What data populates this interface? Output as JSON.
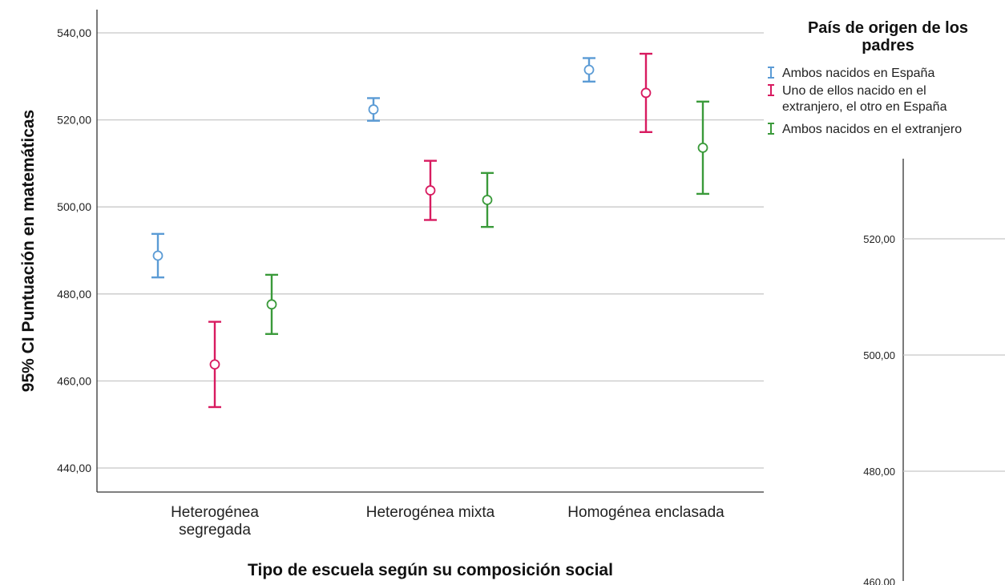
{
  "chart_data": {
    "type": "errorbar",
    "ylabel": "95% CI Puntuación en matemáticas",
    "xlabel": "Tipo de escuela según su composición social",
    "categories": [
      [
        "Heterogénea",
        "segregada"
      ],
      [
        "Heterogénea mixta"
      ],
      [
        "Homogénea enclasada"
      ]
    ],
    "ylim": [
      435,
      545
    ],
    "yticks": [
      440,
      460,
      480,
      500,
      520,
      540
    ],
    "ytick_labels": [
      "440,00",
      "460,00",
      "480,00",
      "500,00",
      "520,00",
      "540,00"
    ],
    "grid": true,
    "legend": {
      "title": [
        "País de origen de los",
        "padres"
      ],
      "placement": "top-right",
      "entries": [
        [
          "Ambos nacidos en España"
        ],
        [
          "Uno de ellos nacido en el",
          "extranjero, el otro en España"
        ],
        [
          "Ambos nacidos en el extranjero"
        ]
      ]
    },
    "series": [
      {
        "name": "Ambos nacidos en España",
        "color": "#5b9bd5",
        "mean": [
          488.8,
          522.4,
          531.5
        ],
        "lower": [
          483.8,
          519.8,
          528.8
        ],
        "upper": [
          493.8,
          525.0,
          534.2
        ]
      },
      {
        "name": "Uno de ellos nacido en el extranjero, el otro en España",
        "color": "#d81b60",
        "mean": [
          463.8,
          503.8,
          526.2
        ],
        "lower": [
          454.0,
          497.0,
          517.2
        ],
        "upper": [
          473.6,
          510.6,
          535.2
        ]
      },
      {
        "name": "Ambos nacidos en el extranjero",
        "color": "#3a9a3a",
        "mean": [
          477.6,
          501.6,
          513.6
        ],
        "lower": [
          470.8,
          495.4,
          503.0
        ],
        "upper": [
          484.4,
          507.8,
          524.2
        ]
      }
    ],
    "background_panel": {
      "yticks": [
        480,
        500,
        520
      ],
      "ytick_labels": [
        "480,00",
        "500,00",
        "520,00"
      ],
      "partial_label": "460,00"
    }
  }
}
